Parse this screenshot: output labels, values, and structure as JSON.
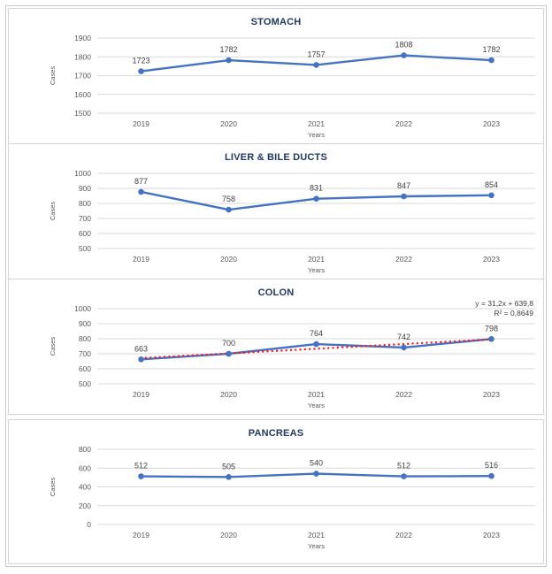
{
  "figure": {
    "description": "Four stacked line charts of yearly cancer cases by site",
    "panel_titles": [
      "STOMACH",
      "LIVER & BILE DUCTS",
      "COLON",
      "PANCREAS"
    ]
  },
  "styles": {
    "series_blue": "#4472C4",
    "trend_red": "#FF1A1A",
    "title_color": "#1F3864",
    "grid_color": "#D9D9D9",
    "axis_text_color": "#595959",
    "label_color": "#404040",
    "panel_border": "#D4D4D4",
    "frame_border": "#C6CACD"
  },
  "chart_data": [
    {
      "type": "line",
      "title": "STOMACH",
      "categories": [
        "2019",
        "2020",
        "2021",
        "2022",
        "2023"
      ],
      "values": [
        1723,
        1782,
        1757,
        1808,
        1782
      ],
      "xlabel": "Years",
      "ylabel": "Cases",
      "ylim": [
        1500,
        1900
      ],
      "yticks": [
        1900,
        1800,
        1700,
        1600,
        1500
      ],
      "grid": true,
      "legend": "none",
      "series_color": "#4472C4",
      "marker": "circle"
    },
    {
      "type": "line",
      "title": "LIVER & BILE DUCTS",
      "categories": [
        "2019",
        "2020",
        "2021",
        "2022",
        "2023"
      ],
      "values": [
        877,
        758,
        831,
        847,
        854
      ],
      "xlabel": "Years",
      "ylabel": "Cases",
      "ylim": [
        500,
        1000
      ],
      "yticks": [
        1000,
        900,
        800,
        700,
        600,
        500
      ],
      "grid": true,
      "legend": "none",
      "series_color": "#4472C4",
      "marker": "circle"
    },
    {
      "type": "line",
      "title": "COLON",
      "categories": [
        "2019",
        "2020",
        "2021",
        "2022",
        "2023"
      ],
      "values": [
        663,
        700,
        764,
        742,
        798
      ],
      "xlabel": "Years",
      "ylabel": "Cases",
      "ylim": [
        500,
        1000
      ],
      "yticks": [
        1000,
        900,
        800,
        700,
        600,
        500
      ],
      "grid": true,
      "legend": "none",
      "series_color": "#4472C4",
      "marker": "circle",
      "trendline": {
        "equation": "y = 31,2x + 639,8",
        "r_squared": "R² = 0,8649",
        "slope": 31.2,
        "intercept": 639.8,
        "color": "#FF1A1A",
        "style": "dotted"
      }
    },
    {
      "type": "line",
      "title": "PANCREAS",
      "categories": [
        "2019",
        "2020",
        "2021",
        "2022",
        "2023"
      ],
      "values": [
        512,
        505,
        540,
        512,
        516
      ],
      "xlabel": "Years",
      "ylabel": "Cases",
      "ylim": [
        0,
        800
      ],
      "yticks": [
        800,
        600,
        400,
        200,
        0
      ],
      "grid": true,
      "legend": "none",
      "series_color": "#4472C4",
      "marker": "circle"
    }
  ]
}
